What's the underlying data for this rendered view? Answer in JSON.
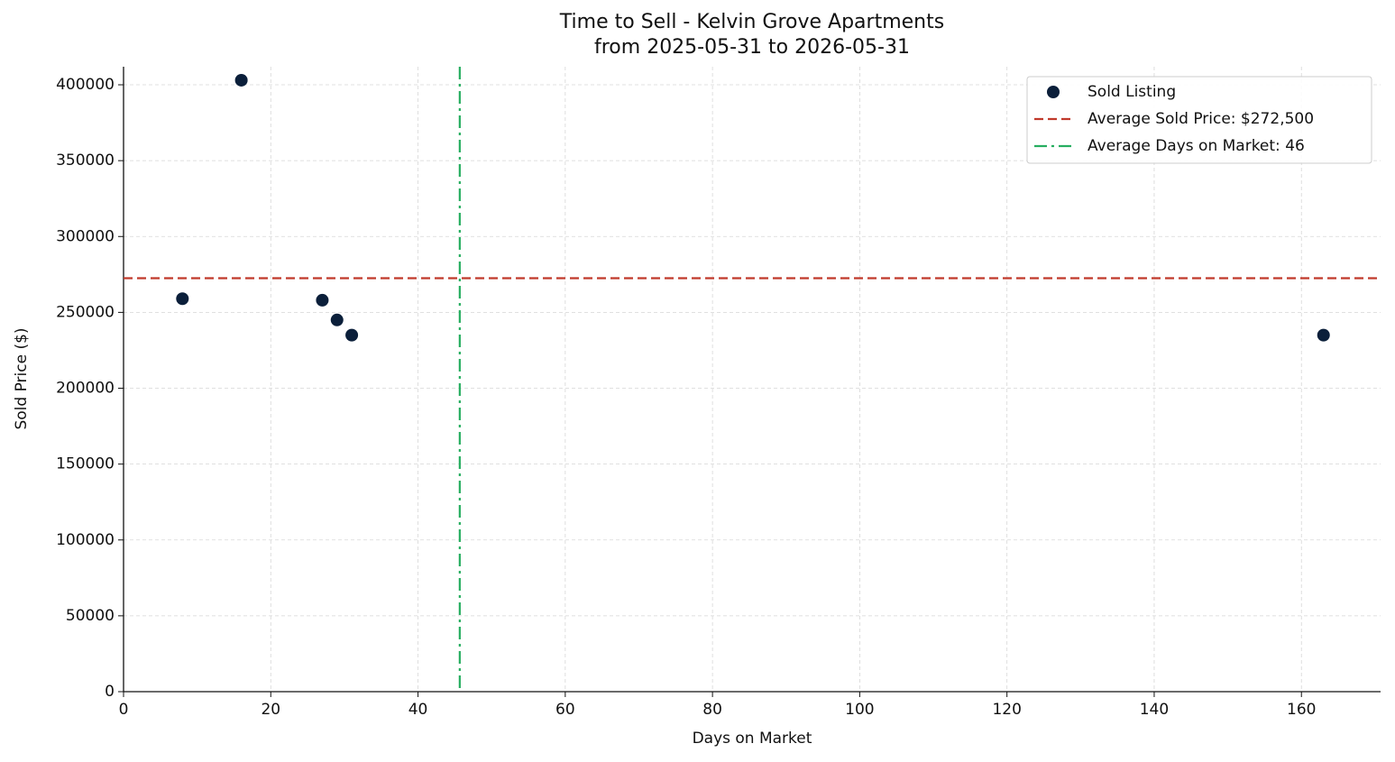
{
  "chart_data": {
    "type": "scatter",
    "title": "Time to Sell - Kelvin Grove Apartments",
    "subtitle": "from 2025-05-31 to 2026-05-31",
    "x_label": "Days on Market",
    "y_label": "Sold Price ($)",
    "series": [
      {
        "name": "Sold Listing",
        "color": "#0b1f3a",
        "x": [
          8,
          16,
          27,
          29,
          31,
          163
        ],
        "values": [
          259000,
          403000,
          258000,
          245000,
          235000,
          235000
        ]
      }
    ],
    "reference_lines": [
      {
        "name": "Average Sold Price: $272,500",
        "axis": "y",
        "value": 272500,
        "color": "#c0392b",
        "style": "dashed"
      },
      {
        "name": "Average Days on Market: 46",
        "axis": "x",
        "value": 45.67,
        "color": "#27ae60",
        "style": "dashdot"
      }
    ],
    "xlim": [
      0,
      170.75
    ],
    "ylim": [
      0,
      411900
    ],
    "xticks": [
      0,
      20,
      40,
      60,
      80,
      100,
      120,
      140,
      160
    ],
    "yticks": [
      0,
      50000,
      100000,
      150000,
      200000,
      250000,
      300000,
      350000,
      400000
    ],
    "grid": true,
    "legend": "upper right"
  }
}
